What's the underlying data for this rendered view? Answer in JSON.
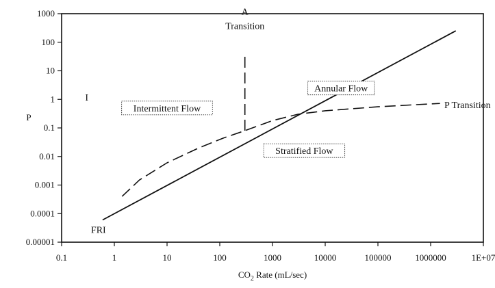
{
  "chart_data": {
    "type": "line",
    "xscale": "log",
    "yscale": "log",
    "xlim": [
      0.1,
      10000000
    ],
    "ylim": [
      1e-05,
      1000
    ],
    "xticks": [
      "0.1",
      "1",
      "10",
      "100",
      "1000",
      "10000",
      "100000",
      "1000000",
      "1E+07"
    ],
    "yticks": [
      "1000",
      "100",
      "10",
      "1",
      "0.1",
      "0.01",
      "0.001",
      "0.0001",
      "0.00001"
    ],
    "xlabel": "CO",
    "xlabel_sub": "2",
    "xlabel_rest": " Rate (mL/sec)",
    "ylabel": "P",
    "grid": false,
    "series": [
      {
        "style": "solid",
        "color": "#111111",
        "points": [
          [
            0.6,
            6e-05
          ],
          [
            3000000,
            250
          ]
        ]
      },
      {
        "style": "dashed",
        "color": "#111111",
        "points": [
          [
            1.4,
            0.0004
          ],
          [
            3,
            0.0015
          ],
          [
            10,
            0.006
          ],
          [
            40,
            0.02
          ],
          [
            120,
            0.045
          ],
          [
            300,
            0.08
          ],
          [
            1000,
            0.18
          ],
          [
            3000,
            0.3
          ],
          [
            10000,
            0.4
          ],
          [
            100000,
            0.55
          ],
          [
            500000,
            0.65
          ],
          [
            1500000,
            0.72
          ]
        ]
      },
      {
        "style": "dashed",
        "color": "#111111",
        "points": [
          [
            300,
            0.08
          ],
          [
            300,
            40
          ]
        ]
      }
    ],
    "annotations": [
      {
        "text": "Intermittent Flow",
        "boxed": true,
        "x": 10,
        "y": 0.5
      },
      {
        "text": "Annular Flow",
        "boxed": true,
        "x": 20000,
        "y": 2.5
      },
      {
        "text": "Stratified Flow",
        "boxed": true,
        "x": 4000,
        "y": 0.016
      },
      {
        "text": "P Transition",
        "boxed": false,
        "x": 5000000,
        "y": 0.65
      },
      {
        "text": "FRI",
        "boxed": false,
        "x": 0.5,
        "y": 2.8e-05
      },
      {
        "text": "A",
        "boxed": false,
        "x": 300,
        "y": 1200
      },
      {
        "text": "Transition",
        "boxed": false,
        "x": 300,
        "y": 380
      },
      {
        "text": "I",
        "boxed": false,
        "x": 0.3,
        "y": 1.2
      }
    ]
  }
}
